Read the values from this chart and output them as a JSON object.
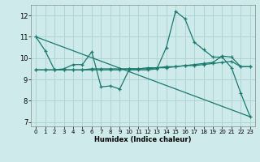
{
  "xlabel": "Humidex (Indice chaleur)",
  "xlim": [
    -0.5,
    23.5
  ],
  "ylim": [
    6.8,
    12.5
  ],
  "xticks": [
    0,
    1,
    2,
    3,
    4,
    5,
    6,
    7,
    8,
    9,
    10,
    11,
    12,
    13,
    14,
    15,
    16,
    17,
    18,
    19,
    20,
    21,
    22,
    23
  ],
  "yticks": [
    7,
    8,
    9,
    10,
    11,
    12
  ],
  "bg_color": "#ceeaea",
  "line_color": "#1a7a6e",
  "grid_color": "#b0d4d4",
  "lines": [
    {
      "x": [
        0,
        1,
        2,
        3,
        4,
        5,
        6,
        7,
        8,
        9,
        10,
        11,
        12,
        13,
        14,
        15,
        16,
        17,
        18,
        19,
        20,
        21,
        22,
        23
      ],
      "y": [
        11.0,
        10.35,
        9.45,
        9.5,
        9.7,
        9.7,
        10.3,
        8.65,
        8.7,
        8.55,
        9.45,
        9.45,
        9.45,
        9.5,
        10.5,
        12.2,
        11.85,
        10.75,
        10.4,
        10.05,
        10.05,
        9.55,
        8.35,
        7.25
      ]
    },
    {
      "x": [
        0,
        1,
        2,
        3,
        4,
        5,
        6,
        7,
        8,
        9,
        10,
        11,
        12,
        13,
        14,
        15,
        16,
        17,
        18,
        19,
        20,
        21,
        22,
        23
      ],
      "y": [
        9.45,
        9.45,
        9.45,
        9.45,
        9.45,
        9.45,
        9.45,
        9.45,
        9.45,
        9.45,
        9.5,
        9.5,
        9.5,
        9.55,
        9.55,
        9.6,
        9.65,
        9.65,
        9.7,
        9.75,
        9.8,
        9.85,
        9.6,
        9.6
      ]
    },
    {
      "x": [
        0,
        1,
        2,
        3,
        4,
        5,
        6,
        7,
        8,
        9,
        10,
        11,
        12,
        13,
        14,
        15,
        16,
        17,
        18,
        19,
        20,
        21,
        22,
        23
      ],
      "y": [
        9.45,
        9.45,
        9.45,
        9.45,
        9.45,
        9.45,
        9.5,
        9.5,
        9.5,
        9.5,
        9.5,
        9.5,
        9.55,
        9.55,
        9.6,
        9.6,
        9.65,
        9.7,
        9.75,
        9.8,
        10.1,
        10.05,
        9.6,
        9.6
      ]
    },
    {
      "x": [
        0,
        23
      ],
      "y": [
        11.0,
        7.25
      ]
    }
  ]
}
